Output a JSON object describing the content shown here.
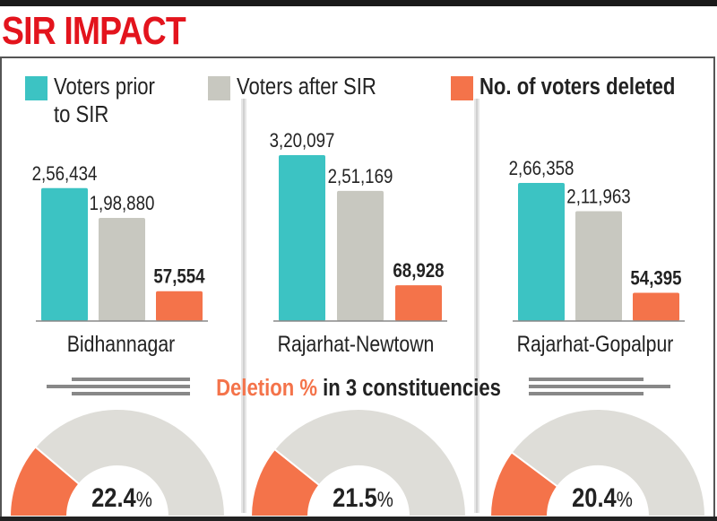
{
  "title": "SIR IMPACT",
  "chart_data": [
    {
      "type": "bar",
      "categories": [
        "Bidhannagar",
        "Rajarhat-Newtown",
        "Rajarhat-Gopalpur"
      ],
      "series": [
        {
          "name": "Voters prior to SIR",
          "color": "#3cc3c3",
          "values": [
            256434,
            320097,
            266358
          ],
          "labels": [
            "2,56,434",
            "3,20,097",
            "2,66,358"
          ]
        },
        {
          "name": "Voters after SIR",
          "color": "#c8c8c0",
          "values": [
            198880,
            251169,
            211963
          ],
          "labels": [
            "1,98,880",
            "2,51,169",
            "2,11,963"
          ]
        },
        {
          "name": "No. of voters deleted",
          "color": "#f4734a",
          "values": [
            57554,
            68928,
            54395
          ],
          "labels": [
            "57,554",
            "68,928",
            "54,395"
          ]
        }
      ],
      "legend": {
        "position": "top",
        "labels": [
          "Voters prior\nto SIR",
          "Voters after SIR",
          "No. of voters deleted"
        ]
      }
    },
    {
      "type": "pie",
      "subtitle_highlight": "Deletion %",
      "subtitle_rest": "in 3 constituencies",
      "style": "semicircle-gauge",
      "categories": [
        "Bidhannagar",
        "Rajarhat-Newtown",
        "Rajarhat-Gopalpur"
      ],
      "values": [
        22.4,
        21.5,
        20.4
      ],
      "labels": [
        "22.4",
        "21.5",
        "20.4"
      ],
      "unit": "%",
      "colors": {
        "deleted": "#f4734a",
        "remaining": "#deddd8"
      }
    }
  ]
}
